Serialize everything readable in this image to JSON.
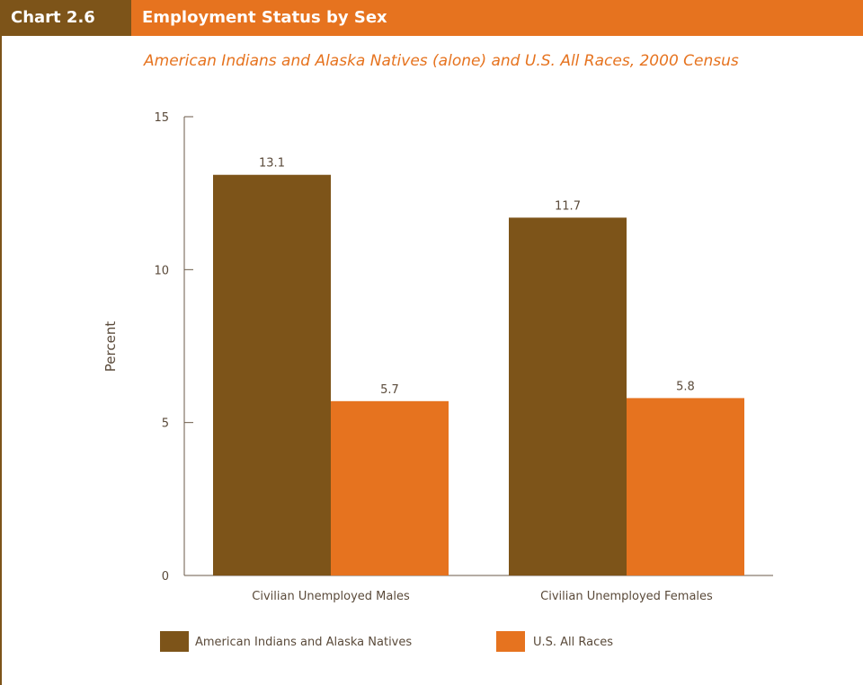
{
  "header": {
    "chart_label": "Chart 2.6",
    "title": "Employment Status by Sex"
  },
  "subtitle": "American Indians and Alaska Natives (alone) and U.S. All Races, 2000 Census",
  "colors": {
    "header_bg": "#e6731f",
    "label_bg": "#7d5419",
    "series_1": "#7d5419",
    "series_2": "#e6731f"
  },
  "chart_data": {
    "type": "bar",
    "title": "Employment Status by Sex",
    "subtitle": "American Indians and Alaska Natives (alone) and U.S. All Races, 2000 Census",
    "xlabel": "",
    "ylabel": "Percent",
    "ylim": [
      0,
      15
    ],
    "yticks": [
      0,
      5,
      10,
      15
    ],
    "categories": [
      "Civilian Unemployed Males",
      "Civilian Unemployed Females"
    ],
    "series": [
      {
        "name": "American Indians and Alaska Natives",
        "values": [
          13.1,
          11.7
        ],
        "color": "#7d5419"
      },
      {
        "name": "U.S. All Races",
        "values": [
          5.7,
          5.8
        ],
        "color": "#e6731f"
      }
    ],
    "data_labels": true,
    "legend_position": "bottom-left",
    "grid": false
  }
}
